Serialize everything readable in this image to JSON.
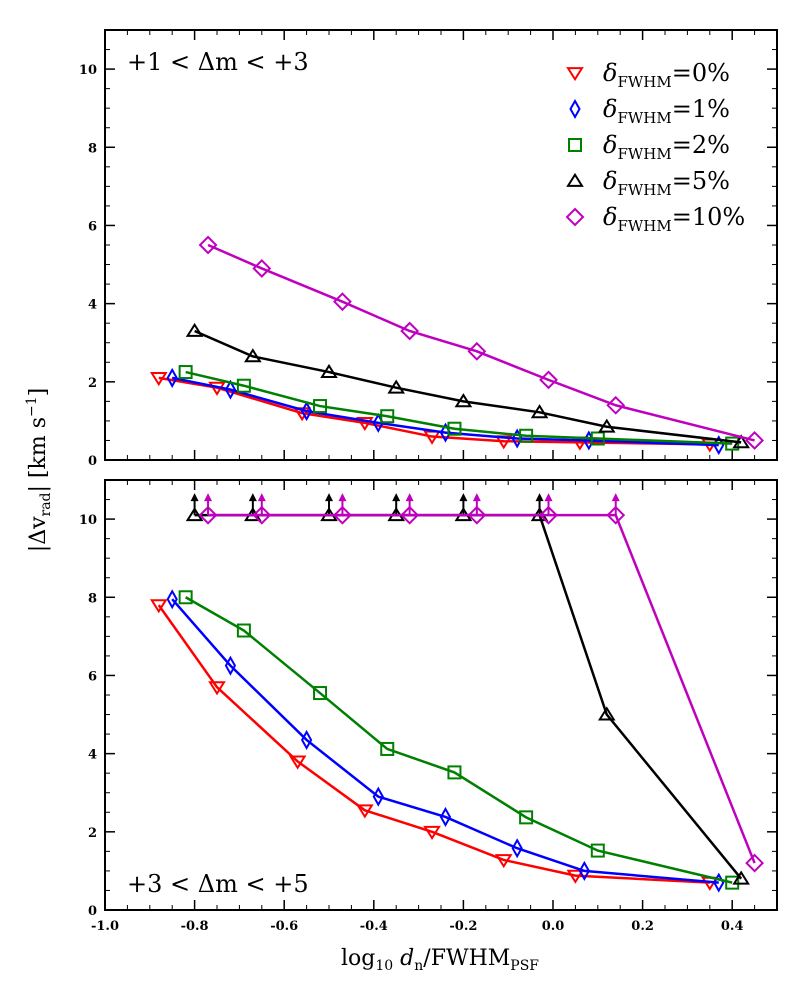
{
  "chart_data": {
    "type": "line",
    "xlabel_main": "log",
    "xlabel_sub10": "10",
    "xlabel_d": " d",
    "xlabel_sub_n": "n",
    "xlabel_rest": "/FWHM",
    "xlabel_sub_psf": "PSF",
    "ylabel_main": "|Δv",
    "ylabel_sub": "rad",
    "ylabel_rest": "| [km s",
    "ylabel_sup": "−1",
    "ylabel_end": "]",
    "xlim": [
      -1.0,
      0.5
    ],
    "ylim": [
      0,
      11
    ],
    "xticks": [
      -1.0,
      -0.8,
      -0.6,
      -0.4,
      -0.2,
      0.0,
      0.2,
      0.4
    ],
    "xtick_labels": [
      "-1.0",
      "-0.8",
      "-0.6",
      "-0.4",
      "-0.2",
      "0.0",
      "0.2",
      "0.4"
    ],
    "yticks": [
      0,
      2,
      4,
      6,
      8,
      10
    ],
    "ytick_labels": [
      "0",
      "2",
      "4",
      "6",
      "8",
      "10"
    ],
    "legend": {
      "position": "top-right",
      "prefix": "δ",
      "sub": "FWHM",
      "entries": [
        "=0%",
        "=1%",
        "=2%",
        "=5%",
        "=10%"
      ]
    },
    "panels": [
      {
        "name": "top",
        "label": "+1 < Δm < +3",
        "label_position": "top-left",
        "series": [
          {
            "name": "δFWHM=0%",
            "color": "#ff0000",
            "marker": "triangle-down",
            "x": [
              -0.88,
              -0.75,
              -0.56,
              -0.42,
              -0.27,
              -0.11,
              0.06,
              0.35
            ],
            "y": [
              2.1,
              1.85,
              1.2,
              0.95,
              0.6,
              0.48,
              0.45,
              0.4
            ]
          },
          {
            "name": "δFWHM=1%",
            "color": "#0000ff",
            "marker": "diamond",
            "x": [
              -0.85,
              -0.72,
              -0.55,
              -0.39,
              -0.24,
              -0.08,
              0.08,
              0.37
            ],
            "y": [
              2.1,
              1.8,
              1.25,
              0.95,
              0.7,
              0.55,
              0.5,
              0.38
            ]
          },
          {
            "name": "δFWHM=2%",
            "color": "#008000",
            "marker": "square",
            "x": [
              -0.82,
              -0.69,
              -0.52,
              -0.37,
              -0.22,
              -0.06,
              0.1,
              0.4
            ],
            "y": [
              2.25,
              1.9,
              1.38,
              1.12,
              0.8,
              0.62,
              0.55,
              0.42
            ]
          },
          {
            "name": "δFWHM=5%",
            "color": "#000000",
            "marker": "triangle-up",
            "x": [
              -0.8,
              -0.67,
              -0.5,
              -0.35,
              -0.2,
              -0.03,
              0.12,
              0.42
            ],
            "y": [
              3.3,
              2.65,
              2.25,
              1.85,
              1.5,
              1.22,
              0.85,
              0.45
            ]
          },
          {
            "name": "δFWHM=10%",
            "color": "#bf00bf",
            "marker": "diamond-wide",
            "x": [
              -0.77,
              -0.65,
              -0.47,
              -0.32,
              -0.17,
              -0.01,
              0.14,
              0.45
            ],
            "y": [
              5.5,
              4.9,
              4.05,
              3.3,
              2.78,
              2.05,
              1.4,
              0.5
            ]
          }
        ]
      },
      {
        "name": "bottom",
        "label": "+3 < Δm < +5",
        "label_position": "bottom-left",
        "series": [
          {
            "name": "δFWHM=0%",
            "color": "#ff0000",
            "marker": "triangle-down",
            "x": [
              -0.88,
              -0.75,
              -0.57,
              -0.42,
              -0.27,
              -0.11,
              0.05,
              0.35
            ],
            "y": [
              7.8,
              5.7,
              3.8,
              2.55,
              2.0,
              1.28,
              0.88,
              0.7
            ],
            "upper_limit": [
              false,
              false,
              false,
              false,
              false,
              false,
              false,
              false
            ]
          },
          {
            "name": "δFWHM=1%",
            "color": "#0000ff",
            "marker": "diamond",
            "x": [
              -0.85,
              -0.72,
              -0.55,
              -0.39,
              -0.24,
              -0.08,
              0.07,
              0.37
            ],
            "y": [
              7.95,
              6.25,
              4.35,
              2.9,
              2.38,
              1.58,
              1.0,
              0.7
            ],
            "upper_limit": [
              false,
              false,
              false,
              false,
              false,
              false,
              false,
              false
            ]
          },
          {
            "name": "δFWHM=2%",
            "color": "#008000",
            "marker": "square",
            "x": [
              -0.82,
              -0.69,
              -0.52,
              -0.37,
              -0.22,
              -0.06,
              0.1,
              0.4
            ],
            "y": [
              8.0,
              7.15,
              5.55,
              4.12,
              3.52,
              2.37,
              1.52,
              0.7
            ],
            "upper_limit": [
              false,
              false,
              false,
              false,
              false,
              false,
              false,
              false
            ]
          },
          {
            "name": "δFWHM=5%",
            "color": "#000000",
            "marker": "triangle-up",
            "x": [
              -0.8,
              -0.67,
              -0.5,
              -0.35,
              -0.2,
              -0.03,
              0.12,
              0.42
            ],
            "y": [
              10.1,
              10.1,
              10.1,
              10.1,
              10.1,
              10.1,
              5.0,
              0.8
            ],
            "upper_limit": [
              true,
              true,
              true,
              true,
              true,
              true,
              false,
              false
            ]
          },
          {
            "name": "δFWHM=10%",
            "color": "#bf00bf",
            "marker": "diamond-wide",
            "x": [
              -0.77,
              -0.65,
              -0.47,
              -0.32,
              -0.17,
              -0.01,
              0.14,
              0.45
            ],
            "y": [
              10.1,
              10.1,
              10.1,
              10.1,
              10.1,
              10.1,
              10.1,
              1.2
            ],
            "upper_limit": [
              true,
              true,
              true,
              true,
              true,
              true,
              true,
              false
            ]
          }
        ]
      }
    ]
  }
}
